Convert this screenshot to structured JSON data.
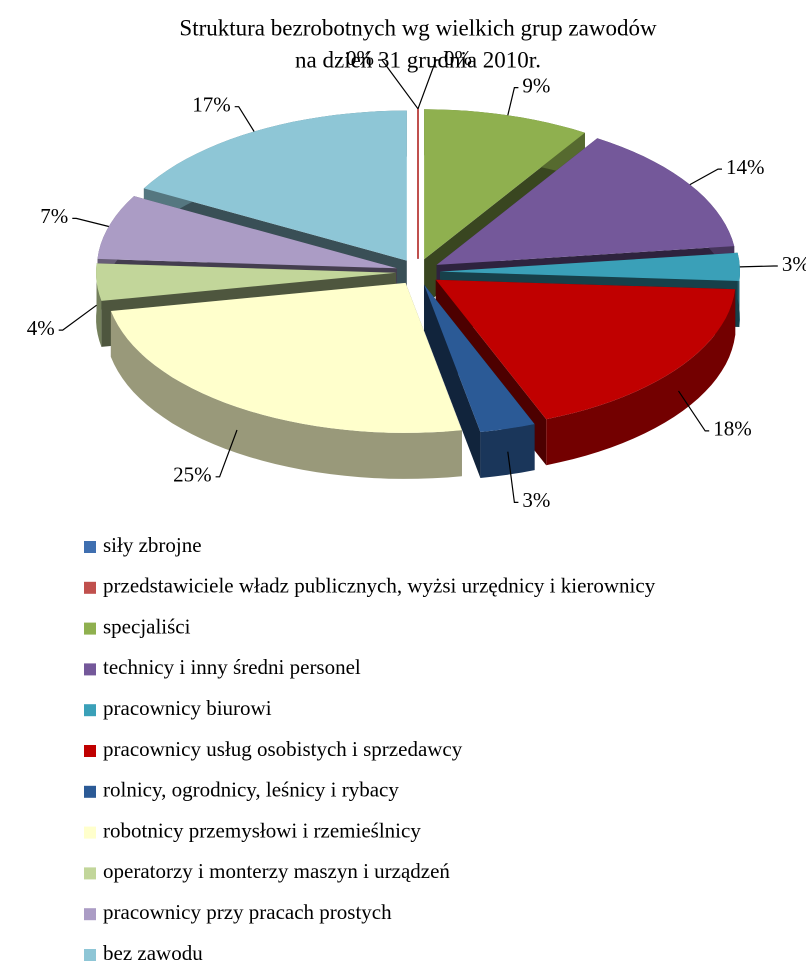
{
  "chart_data": {
    "type": "pie",
    "title": [
      "Struktura bezrobotnych wg wielkich grup zawodów",
      "na dzień 31 grudnia 2010r."
    ],
    "categories": [
      "siły zbrojne",
      "przedstawiciele władz publicznych, wyżsi urzędnicy i kierownicy",
      "specjaliści",
      "technicy i inny średni personel",
      "pracownicy biurowi",
      "pracownicy usług osobistych i sprzedawcy",
      "rolnicy, ogrodnicy, leśnicy i rybacy",
      "robotnicy przemysłowi i rzemieślnicy",
      "operatorzy i monterzy maszyn i urządzeń",
      "pracownicy przy pracach prostych",
      "bez zawodu"
    ],
    "values": [
      0,
      0,
      9,
      14,
      3,
      18,
      3,
      25,
      4,
      7,
      17
    ],
    "value_labels": [
      "0%",
      "0%",
      "9%",
      "14%",
      "3%",
      "18%",
      "3%",
      "25%",
      "4%",
      "7%",
      "17%"
    ],
    "colors": [
      "#3f6fb0",
      "#c0504d",
      "#8fb04f",
      "#74589a",
      "#3aa0b8",
      "#c00000",
      "#2b5a96",
      "#ffffcc",
      "#c2d69a",
      "#ab9cc5",
      "#8ec6d6"
    ],
    "legend": "bottom"
  }
}
